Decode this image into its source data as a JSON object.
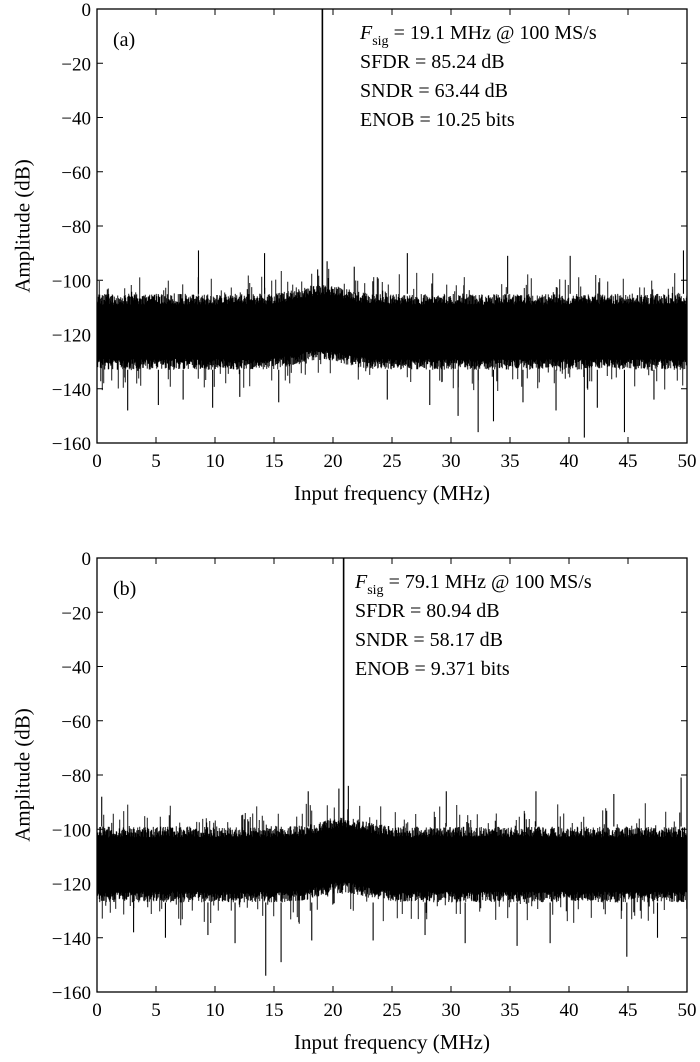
{
  "chart_data": [
    {
      "type": "line",
      "panel_label": "(a)",
      "xlabel": "Input frequency (MHz)",
      "ylabel": "Amplitude (dB)",
      "xlim": [
        0,
        50
      ],
      "ylim": [
        -160,
        0
      ],
      "xticks": [
        "0",
        "5",
        "10",
        "15",
        "20",
        "25",
        "30",
        "35",
        "40",
        "45",
        "50"
      ],
      "yticks": [
        "0",
        "−20",
        "−40",
        "−60",
        "−80",
        "−100",
        "−120",
        "−140",
        "−160"
      ],
      "grid": false,
      "annotation": {
        "fsig_symbol": "F",
        "fsig_sub": "sig",
        "fsig_rest": " = 19.1 MHz @ 100 MS/s",
        "sfdr": "SFDR = 85.24 dB",
        "sndr": "SNDR = 63.44 dB",
        "enob": "ENOB = 10.25 bits"
      },
      "signal_tone": {
        "x": 19.1,
        "y": 0
      },
      "noise_floor": {
        "mean": -117,
        "upper_typical": -105,
        "lower_typical": -133,
        "spur_max": -85.24,
        "min": -158
      },
      "spikes": [
        {
          "x": 2.6,
          "y": -148
        },
        {
          "x": 5.2,
          "y": -146
        },
        {
          "x": 7.3,
          "y": -144
        },
        {
          "x": 9.8,
          "y": -147
        },
        {
          "x": 12.1,
          "y": -143
        },
        {
          "x": 15.4,
          "y": -145
        },
        {
          "x": 18.7,
          "y": -96
        },
        {
          "x": 19.5,
          "y": -93
        },
        {
          "x": 21.8,
          "y": -95
        },
        {
          "x": 24.6,
          "y": -144
        },
        {
          "x": 28.2,
          "y": -146
        },
        {
          "x": 30.6,
          "y": -150
        },
        {
          "x": 32.3,
          "y": -156
        },
        {
          "x": 33.6,
          "y": -152
        },
        {
          "x": 36.1,
          "y": -145
        },
        {
          "x": 38.9,
          "y": -148
        },
        {
          "x": 41.3,
          "y": -158
        },
        {
          "x": 42.4,
          "y": -147
        },
        {
          "x": 44.7,
          "y": -156
        },
        {
          "x": 47.2,
          "y": -144
        },
        {
          "x": 8.6,
          "y": -89
        },
        {
          "x": 14.2,
          "y": -90
        },
        {
          "x": 26.3,
          "y": -90
        },
        {
          "x": 34.8,
          "y": -91
        },
        {
          "x": 40.1,
          "y": -91
        },
        {
          "x": 49.7,
          "y": -89
        }
      ]
    },
    {
      "type": "line",
      "panel_label": "(b)",
      "xlabel": "Input frequency (MHz)",
      "ylabel": "Amplitude (dB)",
      "xlim": [
        0,
        50
      ],
      "ylim": [
        -160,
        0
      ],
      "xticks": [
        "0",
        "5",
        "10",
        "15",
        "20",
        "25",
        "30",
        "35",
        "40",
        "45",
        "50"
      ],
      "yticks": [
        "0",
        "−20",
        "−40",
        "−60",
        "−80",
        "−100",
        "−120",
        "−140",
        "−160"
      ],
      "grid": false,
      "annotation": {
        "fsig_symbol": "F",
        "fsig_sub": "sig",
        "fsig_rest": " = 79.1 MHz @ 100 MS/s",
        "sfdr": "SFDR = 80.94 dB",
        "sndr": "SNDR = 58.17 dB",
        "enob": "ENOB = 9.371 bits"
      },
      "signal_tone": {
        "x": 20.9,
        "y": 0
      },
      "noise_floor": {
        "mean": -111,
        "upper_typical": -99,
        "lower_typical": -127,
        "spur_max": -80.94,
        "min": -154
      },
      "spikes": [
        {
          "x": 3.1,
          "y": -138
        },
        {
          "x": 5.8,
          "y": -140
        },
        {
          "x": 9.4,
          "y": -139
        },
        {
          "x": 11.7,
          "y": -142
        },
        {
          "x": 14.3,
          "y": -154
        },
        {
          "x": 15.6,
          "y": -149
        },
        {
          "x": 18.2,
          "y": -141
        },
        {
          "x": 23.4,
          "y": -141
        },
        {
          "x": 27.8,
          "y": -139
        },
        {
          "x": 31.2,
          "y": -142
        },
        {
          "x": 35.6,
          "y": -143
        },
        {
          "x": 38.4,
          "y": -142
        },
        {
          "x": 44.9,
          "y": -147
        },
        {
          "x": 47.5,
          "y": -140
        },
        {
          "x": 0.4,
          "y": -88
        },
        {
          "x": 17.9,
          "y": -86
        },
        {
          "x": 20.5,
          "y": -85
        },
        {
          "x": 21.3,
          "y": -84
        },
        {
          "x": 29.6,
          "y": -86
        },
        {
          "x": 37.2,
          "y": -86
        },
        {
          "x": 43.8,
          "y": -87
        },
        {
          "x": 49.5,
          "y": -80.94
        }
      ]
    }
  ]
}
